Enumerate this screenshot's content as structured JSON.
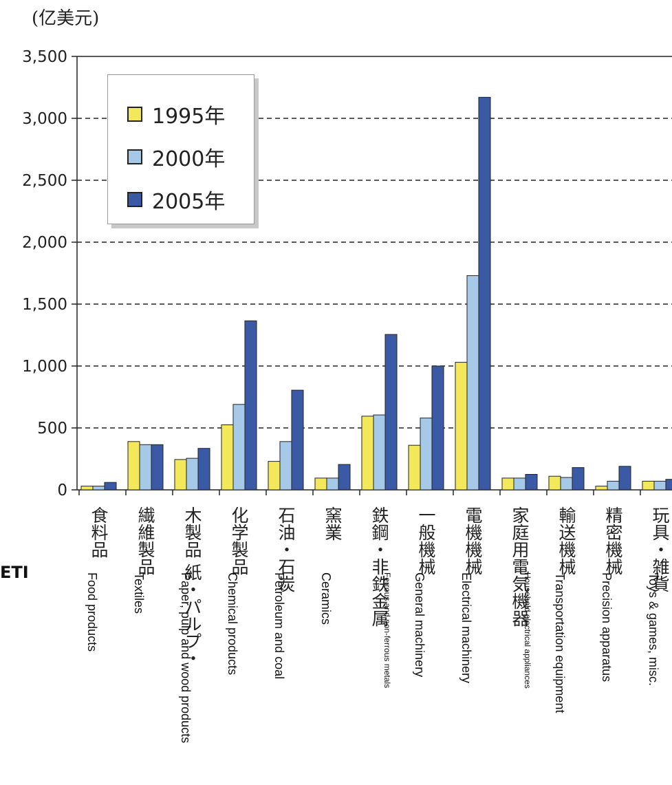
{
  "unit_label": "(亿美元)",
  "side_note": "ETI",
  "chart_data": {
    "type": "bar",
    "title": "",
    "xlabel": "",
    "ylabel": "(亿美元)",
    "ylim": [
      0,
      3500
    ],
    "yticks": [
      0,
      500,
      1000,
      1500,
      2000,
      2500,
      3000,
      3500
    ],
    "ytick_labels": [
      "0",
      "500",
      "1,000",
      "1,500",
      "2,000",
      "2,500",
      "3,000",
      "3,500"
    ],
    "grid": "horizontal-dashed",
    "legend_position": "top-left",
    "categories": [
      {
        "jp": "食料品",
        "en": "Food products"
      },
      {
        "jp": "繊維製品",
        "en": "Textiles"
      },
      {
        "jp": "木製品 紙・パルプ・",
        "en": "Paper, pulp and wood products"
      },
      {
        "jp": "化学製品",
        "en": "Chemical products"
      },
      {
        "jp": "石油・石炭",
        "en": "Petroleum and coal"
      },
      {
        "jp": "窯業",
        "en": "Ceramics"
      },
      {
        "jp": "鉄鋼・非鉄金属",
        "en": "Ferrous and non-ferrous metals"
      },
      {
        "jp": "一般機械",
        "en": "General machinery"
      },
      {
        "jp": "電機機械",
        "en": "Electrical machinery"
      },
      {
        "jp": "家庭用電気機器",
        "en": "Household electrical appliances"
      },
      {
        "jp": "輸送機械",
        "en": "Transportation equipment"
      },
      {
        "jp": "精密機械",
        "en": "Precision apparatus"
      },
      {
        "jp": "玩具・雑貨",
        "en": "Toys & games, misc."
      }
    ],
    "series": [
      {
        "name": "1995年",
        "color": "#f2e85a",
        "values": [
          30,
          390,
          245,
          525,
          230,
          95,
          595,
          360,
          1030,
          95,
          110,
          30,
          70
        ]
      },
      {
        "name": "2000年",
        "color": "#a7c9e8",
        "values": [
          30,
          365,
          255,
          690,
          390,
          95,
          605,
          580,
          1730,
          95,
          100,
          70,
          70
        ]
      },
      {
        "name": "2005年",
        "color": "#3b5aa6",
        "values": [
          60,
          365,
          335,
          1365,
          805,
          205,
          1255,
          1000,
          3170,
          125,
          180,
          190,
          85
        ]
      }
    ]
  }
}
